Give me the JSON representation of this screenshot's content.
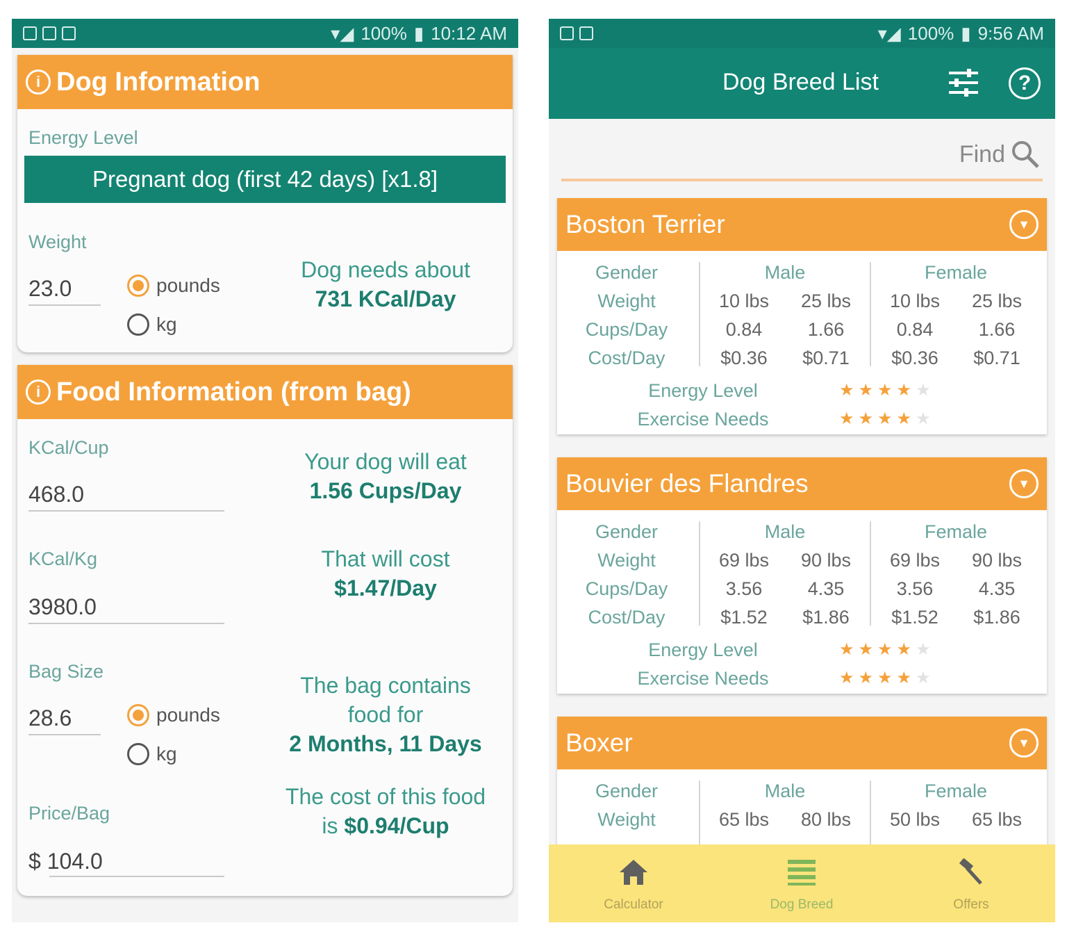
{
  "left_phone": {
    "status": {
      "network": "N⁠ ⁠",
      "battery": "100%",
      "time": "10:12 AM"
    },
    "dog_card": {
      "title": "Dog Information",
      "energy_label": "Energy Level",
      "energy_value": "Pregnant dog (first 42 days) [x1.8]",
      "weight_label": "Weight",
      "weight_value": "23.0",
      "unit_pounds": "pounds",
      "unit_kg": "kg",
      "result_line1": "Dog needs about",
      "result_line2": "731 KCal/Day"
    },
    "food_card": {
      "title": "Food Information (from bag)",
      "kcal_cup_label": "KCal/Cup",
      "kcal_cup_value": "468.0",
      "kcal_kg_label": "KCal/Kg",
      "kcal_kg_value": "3980.0",
      "bag_size_label": "Bag Size",
      "bag_size_value": "28.6",
      "unit_pounds": "pounds",
      "unit_kg": "kg",
      "price_label": "Price/Bag",
      "price_value": "$ 104.0",
      "eat_line1": "Your dog will eat",
      "eat_line2": "1.56 Cups/Day",
      "cost_line1": "That will cost",
      "cost_line2": "$1.47/Day",
      "bag_line1": "The bag contains",
      "bag_line2": "food for",
      "bag_line3": "2 Months, 11 Days",
      "cup_line1": "The cost of this food",
      "cup_line2_prefix": "is",
      "cup_line2_value": "$0.94/Cup"
    }
  },
  "right_phone": {
    "status": {
      "battery": "100%",
      "time": "9:56 AM"
    },
    "title": "Dog Breed List",
    "find": "Find",
    "labels": {
      "gender": "Gender",
      "weight": "Weight",
      "cups": "Cups/Day",
      "cost": "Cost/Day",
      "male": "Male",
      "female": "Female",
      "energy": "Energy Level",
      "exercise": "Exercise Needs"
    },
    "breeds": [
      {
        "name": "Boston Terrier",
        "male_weight": [
          "10 lbs",
          "25 lbs"
        ],
        "male_cups": [
          "0.84",
          "1.66"
        ],
        "male_cost": [
          "$0.36",
          "$0.71"
        ],
        "female_weight": [
          "10 lbs",
          "25 lbs"
        ],
        "female_cups": [
          "0.84",
          "1.66"
        ],
        "female_cost": [
          "$0.36",
          "$0.71"
        ],
        "energy_rating": 4,
        "exercise_rating": 4
      },
      {
        "name": "Bouvier des Flandres",
        "male_weight": [
          "69 lbs",
          "90 lbs"
        ],
        "male_cups": [
          "3.56",
          "4.35"
        ],
        "male_cost": [
          "$1.52",
          "$1.86"
        ],
        "female_weight": [
          "69 lbs",
          "90 lbs"
        ],
        "female_cups": [
          "3.56",
          "4.35"
        ],
        "female_cost": [
          "$1.52",
          "$1.86"
        ],
        "energy_rating": 4,
        "exercise_rating": 4
      },
      {
        "name": "Boxer",
        "male_weight": [
          "65 lbs",
          "80 lbs"
        ],
        "female_weight": [
          "50 lbs",
          "65 lbs"
        ]
      }
    ],
    "nav": {
      "calculator": "Calculator",
      "dog_breed": "Dog Breed",
      "offers": "Offers"
    },
    "colors": {
      "teal": "#128574",
      "orange": "#f5a13b",
      "nav_bg": "#fbe47b"
    }
  }
}
